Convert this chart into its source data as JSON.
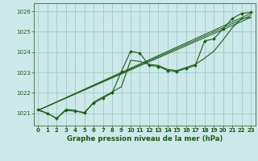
{
  "title": "Graphe pression niveau de la mer (hPa)",
  "bg_color": "#cce8e8",
  "grid_color": "#a8cccc",
  "line_color": "#1a5c1a",
  "xlim": [
    -0.5,
    23.5
  ],
  "ylim": [
    1020.4,
    1026.4
  ],
  "yticks": [
    1021,
    1022,
    1023,
    1024,
    1025,
    1026
  ],
  "xticks": [
    0,
    1,
    2,
    3,
    4,
    5,
    6,
    7,
    8,
    9,
    10,
    11,
    12,
    13,
    14,
    15,
    16,
    17,
    18,
    19,
    20,
    21,
    22,
    23
  ],
  "main_series": {
    "x": [
      0,
      1,
      2,
      3,
      4,
      5,
      6,
      7,
      8,
      9,
      10,
      11,
      12,
      13,
      14,
      15,
      16,
      17,
      18,
      19,
      20,
      21,
      22,
      23
    ],
    "y": [
      1021.2,
      1021.0,
      1020.75,
      1021.15,
      1021.1,
      1021.05,
      1021.5,
      1021.75,
      1022.0,
      1023.05,
      1024.05,
      1023.95,
      1023.35,
      1023.3,
      1023.1,
      1023.05,
      1023.2,
      1023.35,
      1024.55,
      1024.65,
      1025.15,
      1025.65,
      1025.9,
      1025.95
    ]
  },
  "series2": {
    "x": [
      0,
      1,
      2,
      3,
      4,
      5,
      6,
      7,
      8,
      9,
      10,
      11,
      12,
      13,
      14,
      15,
      16,
      17,
      18,
      19,
      20,
      21,
      22,
      23
    ],
    "y": [
      1021.15,
      1021.0,
      1020.75,
      1021.2,
      1021.15,
      1021.0,
      1021.55,
      1021.8,
      1022.05,
      1022.3,
      1023.6,
      1023.55,
      1023.4,
      1023.35,
      1023.15,
      1023.1,
      1023.25,
      1023.4,
      1023.7,
      1024.05,
      1024.6,
      1025.2,
      1025.65,
      1025.7
    ]
  },
  "trend1": {
    "x": [
      0,
      23
    ],
    "y": [
      1021.15,
      1025.7
    ]
  },
  "trend2": {
    "x": [
      0,
      23
    ],
    "y": [
      1021.15,
      1025.8
    ]
  },
  "trend3": {
    "x": [
      0,
      23
    ],
    "y": [
      1021.15,
      1025.9
    ]
  }
}
